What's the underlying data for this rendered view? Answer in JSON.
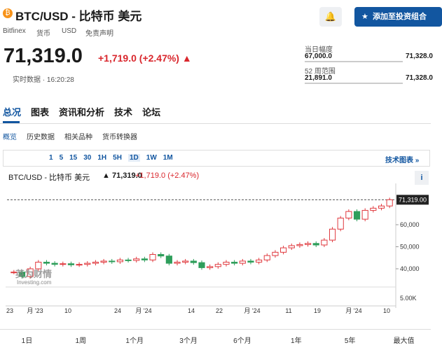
{
  "header": {
    "title": "BTC/USD - 比特币 美元",
    "add_button": "添加至投资组合",
    "exchange": "Bitfinex",
    "asset_type": "货币",
    "currency": "USD",
    "disclaimer": "免责声明",
    "price": "71,319.0",
    "change": "+1,719.0 (+2.47%)",
    "realtime": "实时数据 · 16:20:28"
  },
  "ranges": {
    "day_label": "当日幅度",
    "day_low": "67,000.0",
    "day_high": "71,328.0",
    "week52_label": "52 周范围",
    "week52_low": "21,891.0",
    "week52_high": "71,328.0"
  },
  "tabs": [
    "总况",
    "图表",
    "资讯和分析",
    "技术",
    "论坛"
  ],
  "subtabs": [
    "概览",
    "历史数据",
    "相关品种",
    "货币转换器"
  ],
  "toolbar": {
    "intervals": [
      "1",
      "5",
      "15",
      "30",
      "1H",
      "5H",
      "1D",
      "1W",
      "1M"
    ],
    "tech_chart": "技术图表 »"
  },
  "chart_header": {
    "name": "BTC/USD - 比特币 美元",
    "price": "71,319.0",
    "change": "+1,719.0",
    "pct": "(+2.47%)"
  },
  "chart": {
    "type": "candlestick",
    "up_color": "#e0393e",
    "down_color": "#2e9e5b",
    "values": [
      38500,
      36500,
      40000,
      43000,
      42500,
      42000,
      42300,
      41800,
      42000,
      42500,
      43000,
      43500,
      43200,
      44000,
      43800,
      44500,
      44000,
      46500,
      45800,
      42500,
      43000,
      43500,
      42800,
      40500,
      41000,
      42000,
      43000,
      42500,
      43500,
      43000,
      44000,
      46000,
      47500,
      49500,
      50500,
      51000,
      51500,
      50800,
      53000,
      58000,
      63000,
      66000,
      62500,
      66500,
      67500,
      68500,
      71319
    ],
    "ylim": [
      36500,
      76200
    ],
    "yticks": [
      {
        "value": 60000,
        "label": "60,000"
      },
      {
        "value": 50000,
        "label": "50,000"
      },
      {
        "value": 40000,
        "label": "40,000"
      }
    ],
    "last": {
      "value": 71319,
      "label": "71,319.00"
    },
    "volume_tick": "5.00K",
    "x_labels": [
      "23",
      "月 '23",
      "10",
      "24",
      "月 '24",
      "14",
      "22",
      "月 '24",
      "11",
      "19",
      "月 '24",
      "10"
    ],
    "watermark": "英为财情",
    "watermark_sub": "Investing.com"
  },
  "periods": [
    "1日",
    "1周",
    "1个月",
    "3个月",
    "6个月",
    "1年",
    "5年",
    "最大值"
  ]
}
